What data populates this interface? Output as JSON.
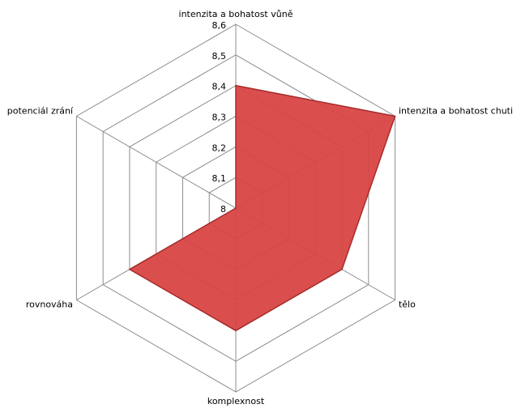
{
  "chart_data": {
    "type": "radar",
    "categories": [
      "intenzita a bohatost vůně",
      "intenzita a bohatost chuti",
      "tělo",
      "komplexnost",
      "rovnováha",
      "potenciál zrání"
    ],
    "values": [
      8.4,
      8.6,
      8.4,
      8.4,
      8.4,
      8.0
    ],
    "color": "#d94444",
    "rlim": [
      8,
      8.6
    ],
    "rticks": [
      8,
      {
        "value": 8.1,
        "label": "8,1"
      },
      {
        "value": 8.2,
        "label": "8,2"
      },
      {
        "value": 8.3,
        "label": "8,3"
      },
      {
        "value": 8.4,
        "label": "8,4"
      },
      {
        "value": 8.5,
        "label": "8,5"
      },
      {
        "value": 8.6,
        "label": "8,6"
      }
    ],
    "grid": true
  }
}
